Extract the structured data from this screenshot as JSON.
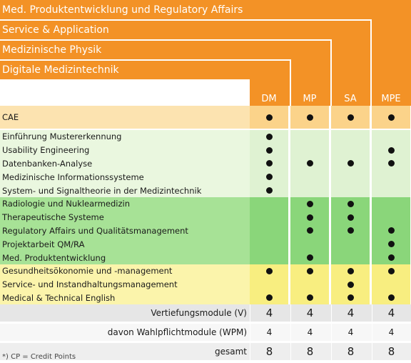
{
  "tracks": [
    "Med. Produktentwicklung und Regulatory Affairs",
    "Service & Application",
    "Medizinische Physik",
    "Digitale Medizintechnik"
  ],
  "columns": [
    "DM",
    "MP",
    "SA",
    "MPE"
  ],
  "colors": {
    "orange": "#f39226",
    "cae_band": "#fbd38a",
    "cae_band_label": "#fce3b0",
    "light_green": "#dff2d2",
    "light_green_label": "#eaf7df",
    "mid_green": "#8ad67a",
    "mid_green_label": "#a7e296",
    "yellow": "#f8ee80",
    "yellow_label": "#fbf4ab",
    "summary_gray": "#e6e6e6",
    "summary_gray_alt": "#eeeeee",
    "summary_white": "#f7f7f7"
  },
  "modules": [
    {
      "label": "CAE",
      "group": "cae",
      "marks": [
        true,
        true,
        true,
        true
      ]
    },
    {
      "label": "Einführung Mustererkennung",
      "group": "light",
      "marks": [
        true,
        false,
        false,
        false
      ]
    },
    {
      "label": "Usability Engineering",
      "group": "light",
      "marks": [
        true,
        false,
        false,
        true
      ]
    },
    {
      "label": "Datenbanken-Analyse",
      "group": "light",
      "marks": [
        true,
        true,
        true,
        true
      ]
    },
    {
      "label": "Medizinische Informationssysteme",
      "group": "light",
      "marks": [
        true,
        false,
        false,
        false
      ]
    },
    {
      "label": "System- und Signaltheorie in der Medizintechnik",
      "group": "light",
      "marks": [
        true,
        false,
        false,
        false
      ]
    },
    {
      "label": "Radiologie und Nuklearmedizin",
      "group": "mid",
      "marks": [
        false,
        true,
        true,
        false
      ]
    },
    {
      "label": "Therapeutische Systeme",
      "group": "mid",
      "marks": [
        false,
        true,
        true,
        false
      ]
    },
    {
      "label": "Regulatory Affairs und Qualitätsmanagement",
      "group": "mid",
      "marks": [
        false,
        true,
        true,
        true
      ]
    },
    {
      "label": "Projektarbeit QM/RA",
      "group": "mid",
      "marks": [
        false,
        false,
        false,
        true
      ]
    },
    {
      "label": "Med. Produktentwicklung",
      "group": "mid",
      "marks": [
        false,
        true,
        false,
        true
      ]
    },
    {
      "label": "Gesundheitsökonomie und -management",
      "group": "yellow",
      "marks": [
        true,
        true,
        true,
        true
      ]
    },
    {
      "label": "Service- und Instandhaltungsmanagement",
      "group": "yellow",
      "marks": [
        false,
        false,
        true,
        false
      ]
    },
    {
      "label": "Medical & Technical English",
      "group": "yellow",
      "marks": [
        true,
        true,
        true,
        true
      ]
    }
  ],
  "summary": [
    {
      "label": "Vertiefungsmodule (V)",
      "values": [
        "4",
        "4",
        "4",
        "4"
      ],
      "size": "big"
    },
    {
      "label": "davon Wahlpflichtmodule (WPM)",
      "values": [
        "4",
        "4",
        "4",
        "4"
      ],
      "size": "small"
    },
    {
      "label": "gesamt",
      "values": [
        "8",
        "8",
        "8",
        "8"
      ],
      "size": "big"
    }
  ],
  "footnote": "*) CP = Credit Points"
}
